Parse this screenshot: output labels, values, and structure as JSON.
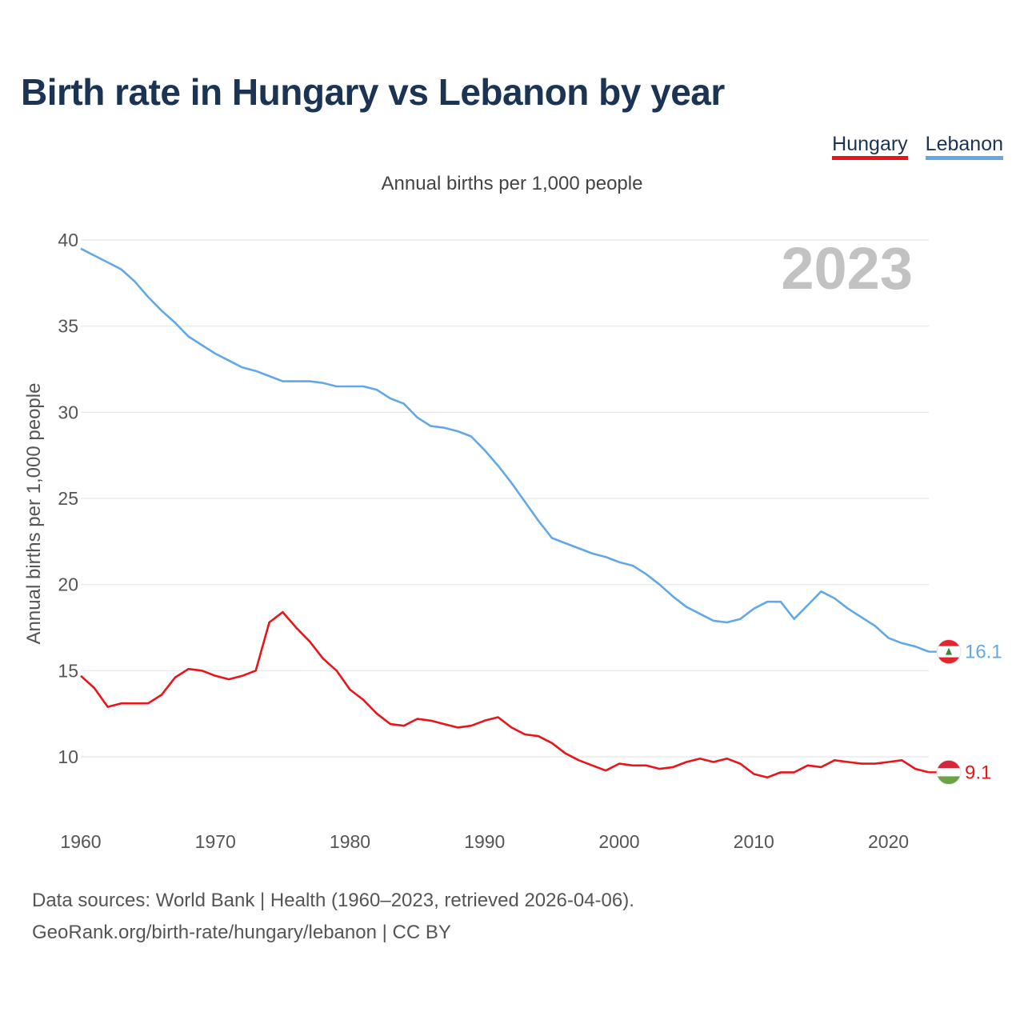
{
  "title": "Birth rate in Hungary vs Lebanon by year",
  "subtitle": "Annual births per 1,000 people",
  "footer": {
    "line1": "Data sources: World Bank | Health (1960–2023, retrieved 2026-04-06).",
    "line2": "GeoRank.org/birth-rate/hungary/lebanon | CC BY"
  },
  "colors": {
    "Hungary": "#e8151b",
    "Lebanon": "#62a8e8"
  },
  "chart_data": {
    "type": "line",
    "title": "Birth rate in Hungary vs Lebanon by year",
    "ylabel": "Annual births per 1,000 people",
    "xlabel": "",
    "year_label": "2023",
    "xlim": [
      1960,
      2023
    ],
    "ylim": [
      7,
      40
    ],
    "yticks": [
      10,
      15,
      20,
      25,
      30,
      35,
      40
    ],
    "xticks": [
      1960,
      1970,
      1980,
      1990,
      2000,
      2010,
      2020
    ],
    "x": [
      1960,
      1961,
      1962,
      1963,
      1964,
      1965,
      1966,
      1967,
      1968,
      1969,
      1970,
      1971,
      1972,
      1973,
      1974,
      1975,
      1976,
      1977,
      1978,
      1979,
      1980,
      1981,
      1982,
      1983,
      1984,
      1985,
      1986,
      1987,
      1988,
      1989,
      1990,
      1991,
      1992,
      1993,
      1994,
      1995,
      1996,
      1997,
      1998,
      1999,
      2000,
      2001,
      2002,
      2003,
      2004,
      2005,
      2006,
      2007,
      2008,
      2009,
      2010,
      2011,
      2012,
      2013,
      2014,
      2015,
      2016,
      2017,
      2018,
      2019,
      2020,
      2021,
      2022,
      2023
    ],
    "series": [
      {
        "name": "Hungary",
        "end_label": "9.1",
        "values": [
          14.7,
          14.0,
          12.9,
          13.1,
          13.1,
          13.1,
          13.6,
          14.6,
          15.1,
          15.0,
          14.7,
          14.5,
          14.7,
          15.0,
          17.8,
          18.4,
          17.5,
          16.7,
          15.7,
          15.0,
          13.9,
          13.3,
          12.5,
          11.9,
          11.8,
          12.2,
          12.1,
          11.9,
          11.7,
          11.8,
          12.1,
          12.3,
          11.7,
          11.3,
          11.2,
          10.8,
          10.2,
          9.8,
          9.5,
          9.2,
          9.6,
          9.5,
          9.5,
          9.3,
          9.4,
          9.7,
          9.9,
          9.7,
          9.9,
          9.6,
          9.0,
          8.8,
          9.1,
          9.1,
          9.5,
          9.4,
          9.8,
          9.7,
          9.6,
          9.6,
          9.7,
          9.8,
          9.3,
          9.1
        ]
      },
      {
        "name": "Lebanon",
        "end_label": "16.1",
        "values": [
          39.5,
          39.1,
          38.7,
          38.3,
          37.6,
          36.7,
          35.9,
          35.2,
          34.4,
          33.9,
          33.4,
          33.0,
          32.6,
          32.4,
          32.1,
          31.8,
          31.8,
          31.8,
          31.7,
          31.5,
          31.5,
          31.5,
          31.3,
          30.8,
          30.5,
          29.7,
          29.2,
          29.1,
          28.9,
          28.6,
          27.8,
          26.9,
          25.9,
          24.8,
          23.7,
          22.7,
          22.4,
          22.1,
          21.8,
          21.6,
          21.3,
          21.1,
          20.6,
          20.0,
          19.3,
          18.7,
          18.3,
          17.9,
          17.8,
          18.0,
          18.6,
          19.0,
          19.0,
          18.0,
          18.8,
          19.6,
          19.2,
          18.6,
          18.1,
          17.6,
          16.9,
          16.6,
          16.4,
          16.1
        ]
      }
    ]
  }
}
